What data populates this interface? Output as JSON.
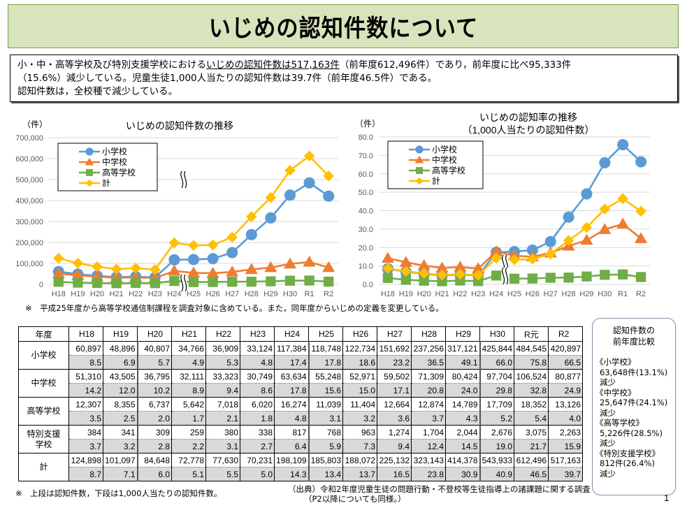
{
  "title": "いじめの認知件数について",
  "summary": {
    "line1_pre": "小・中・高等学校及び特別支援学校における",
    "line1_underlined": "いじめの認知件数は517,163件",
    "line1_post": "（前年度612,496件）であり，前年度に比べ95,333件",
    "line2": "（15.6%）減少している。児童生徒1,000人当たりの認知件数は39.7件（前年度46.5件）である。",
    "line3": "認知件数は，全校種で減少している。"
  },
  "chart_data": [
    {
      "type": "line",
      "title": "いじめの認知件数の推移",
      "ylabel": "（件）",
      "xlabel": "",
      "categories": [
        "H18",
        "H19",
        "H20",
        "H21",
        "H22",
        "H23",
        "H24",
        "H25",
        "H26",
        "H27",
        "H28",
        "H29",
        "H30",
        "R1",
        "R2"
      ],
      "ylim": [
        0,
        700000
      ],
      "yticks": [
        0,
        100000,
        200000,
        300000,
        400000,
        500000,
        600000,
        700000
      ],
      "ytick_labels": [
        "0",
        "100,000",
        "200,000",
        "300,000",
        "400,000",
        "500,000",
        "600,000",
        "700,000"
      ],
      "grid": true,
      "legend": "top-left",
      "break_between": [
        "H24",
        "H25"
      ],
      "series": [
        {
          "name": "小学校",
          "color": "#5b9bd5",
          "marker": "circle",
          "values": [
            60897,
            48896,
            40807,
            34766,
            36909,
            33124,
            117384,
            118748,
            122734,
            151692,
            237256,
            317121,
            425844,
            484545,
            420897
          ]
        },
        {
          "name": "中学校",
          "color": "#ed7d31",
          "marker": "triangle",
          "values": [
            51310,
            43505,
            36795,
            32111,
            33323,
            30749,
            63634,
            55248,
            52971,
            59502,
            71309,
            80424,
            97704,
            106524,
            80877
          ]
        },
        {
          "name": "高等学校",
          "color": "#70ad47",
          "marker": "square",
          "values": [
            12307,
            8355,
            6737,
            5642,
            7018,
            6020,
            16274,
            11039,
            11404,
            12664,
            12874,
            14789,
            17709,
            18352,
            13126
          ]
        },
        {
          "name": "計",
          "color": "#ffc000",
          "marker": "diamond",
          "values": [
            124898,
            101097,
            84648,
            72778,
            77630,
            70231,
            198109,
            185803,
            188072,
            225132,
            323143,
            414378,
            543933,
            612496,
            517163
          ]
        }
      ]
    },
    {
      "type": "line",
      "title": "いじめの認知率の推移",
      "subtitle": "（1,000人当たりの認知件数）",
      "ylabel": "（件）",
      "xlabel": "",
      "categories": [
        "H18",
        "H19",
        "H20",
        "H21",
        "H22",
        "H23",
        "H24",
        "H25",
        "H26",
        "H27",
        "H28",
        "H29",
        "H30",
        "R1",
        "R2"
      ],
      "ylim": [
        0,
        80
      ],
      "yticks": [
        0,
        10,
        20,
        30,
        40,
        50,
        60,
        70,
        80
      ],
      "ytick_labels": [
        "0.0",
        "10.0",
        "20.0",
        "30.0",
        "40.0",
        "50.0",
        "60.0",
        "70.0",
        "80.0"
      ],
      "grid": true,
      "legend": "top-left",
      "break_between": [
        "H24",
        "H25"
      ],
      "series": [
        {
          "name": "小学校",
          "color": "#5b9bd5",
          "marker": "circle",
          "values": [
            8.5,
            6.9,
            5.7,
            4.9,
            5.3,
            4.8,
            17.4,
            17.8,
            18.6,
            23.2,
            36.5,
            49.1,
            66.0,
            75.8,
            66.5
          ]
        },
        {
          "name": "中学校",
          "color": "#ed7d31",
          "marker": "triangle",
          "values": [
            14.2,
            12.0,
            10.2,
            8.9,
            9.4,
            8.6,
            17.8,
            15.6,
            15.0,
            17.1,
            20.8,
            24.0,
            29.8,
            32.8,
            24.9
          ]
        },
        {
          "name": "高等学校",
          "color": "#70ad47",
          "marker": "square",
          "values": [
            3.5,
            2.5,
            2.0,
            1.7,
            2.1,
            1.8,
            4.8,
            3.1,
            3.2,
            3.6,
            3.7,
            4.3,
            5.2,
            5.4,
            4.0
          ]
        },
        {
          "name": "計",
          "color": "#ffc000",
          "marker": "diamond",
          "values": [
            8.7,
            7.1,
            6.0,
            5.1,
            5.5,
            5.0,
            14.3,
            13.4,
            13.7,
            16.5,
            23.8,
            30.9,
            40.9,
            46.5,
            39.7
          ]
        }
      ]
    }
  ],
  "note_chart": "※　平成25年度から高等学校通信制課程を調査対象に含めている。また，同年度からいじめの定義を変更している。",
  "table": {
    "header_label": "年度",
    "years": [
      "H18",
      "H19",
      "H20",
      "H21",
      "H22",
      "H23",
      "H24",
      "H25",
      "H26",
      "H27",
      "H28",
      "H29",
      "H30",
      "R元",
      "R2"
    ],
    "rows": [
      {
        "label": "小学校",
        "counts": [
          "60,897",
          "48,896",
          "40,807",
          "34,766",
          "36,909",
          "33,124",
          "117,384",
          "118,748",
          "122,734",
          "151,692",
          "237,256",
          "317,121",
          "425,844",
          "484,545",
          "420,897"
        ],
        "rates": [
          "8.5",
          "6.9",
          "5.7",
          "4.9",
          "5.3",
          "4.8",
          "17.4",
          "17.8",
          "18.6",
          "23.2",
          "36.5",
          "49.1",
          "66.0",
          "75.8",
          "66.5"
        ]
      },
      {
        "label": "中学校",
        "counts": [
          "51,310",
          "43,505",
          "36,795",
          "32,111",
          "33,323",
          "30,749",
          "63,634",
          "55,248",
          "52,971",
          "59,502",
          "71,309",
          "80,424",
          "97,704",
          "106,524",
          "80,877"
        ],
        "rates": [
          "14.2",
          "12.0",
          "10.2",
          "8.9",
          "9.4",
          "8.6",
          "17.8",
          "15.6",
          "15.0",
          "17.1",
          "20.8",
          "24.0",
          "29.8",
          "32.8",
          "24.9"
        ]
      },
      {
        "label": "高等学校",
        "counts": [
          "12,307",
          "8,355",
          "6,737",
          "5,642",
          "7,018",
          "6,020",
          "16,274",
          "11,039",
          "11,404",
          "12,664",
          "12,874",
          "14,789",
          "17,709",
          "18,352",
          "13,126"
        ],
        "rates": [
          "3.5",
          "2.5",
          "2.0",
          "1.7",
          "2.1",
          "1.8",
          "4.8",
          "3.1",
          "3.2",
          "3.6",
          "3.7",
          "4.3",
          "5.2",
          "5.4",
          "4.0"
        ]
      },
      {
        "label": "特別支援学校",
        "label_l1": "特別支援",
        "label_l2": "学校",
        "counts": [
          "384",
          "341",
          "309",
          "259",
          "380",
          "338",
          "817",
          "768",
          "963",
          "1,274",
          "1,704",
          "2,044",
          "2,676",
          "3,075",
          "2,263"
        ],
        "rates": [
          "3.7",
          "3.2",
          "2.8",
          "2.2",
          "3.1",
          "2.7",
          "6.4",
          "5.9",
          "7.3",
          "9.4",
          "12.4",
          "14.5",
          "19.0",
          "21.7",
          "15.9"
        ]
      },
      {
        "label": "計",
        "counts": [
          "124,898",
          "101,097",
          "84,648",
          "72,778",
          "77,630",
          "70,231",
          "198,109",
          "185,803",
          "188,072",
          "225,132",
          "323,143",
          "414,378",
          "543,933",
          "612,496",
          "517,163"
        ],
        "rates": [
          "8.7",
          "7.1",
          "6.0",
          "5.1",
          "5.5",
          "5.0",
          "14.3",
          "13.4",
          "13.7",
          "16.5",
          "23.8",
          "30.9",
          "40.9",
          "46.5",
          "39.7"
        ]
      }
    ]
  },
  "note_table": "※　上段は認知件数，下段は1,000人当たりの認知件数。",
  "source": {
    "line1": "（出典）令和2年度児童生徒の問題行動・不登校等生徒指導上の諸課題に関する調査",
    "line2": "（P2以降についても同様。）"
  },
  "comparison": {
    "heading_l1": "認知件数の",
    "heading_l2": "前年度比較",
    "items": [
      {
        "category": "《小学校》",
        "change": "63,648件(13.1%)",
        "direction": "減少"
      },
      {
        "category": "《中学校》",
        "change": "25,647件(24.1%)",
        "direction": "減少"
      },
      {
        "category": "《高等学校》",
        "change": "5,226件(28.5%)",
        "direction": "減少"
      },
      {
        "category": "《特別支援学校》",
        "change": "812件(26.4%)",
        "direction": "減少"
      }
    ]
  },
  "page_number": "1"
}
